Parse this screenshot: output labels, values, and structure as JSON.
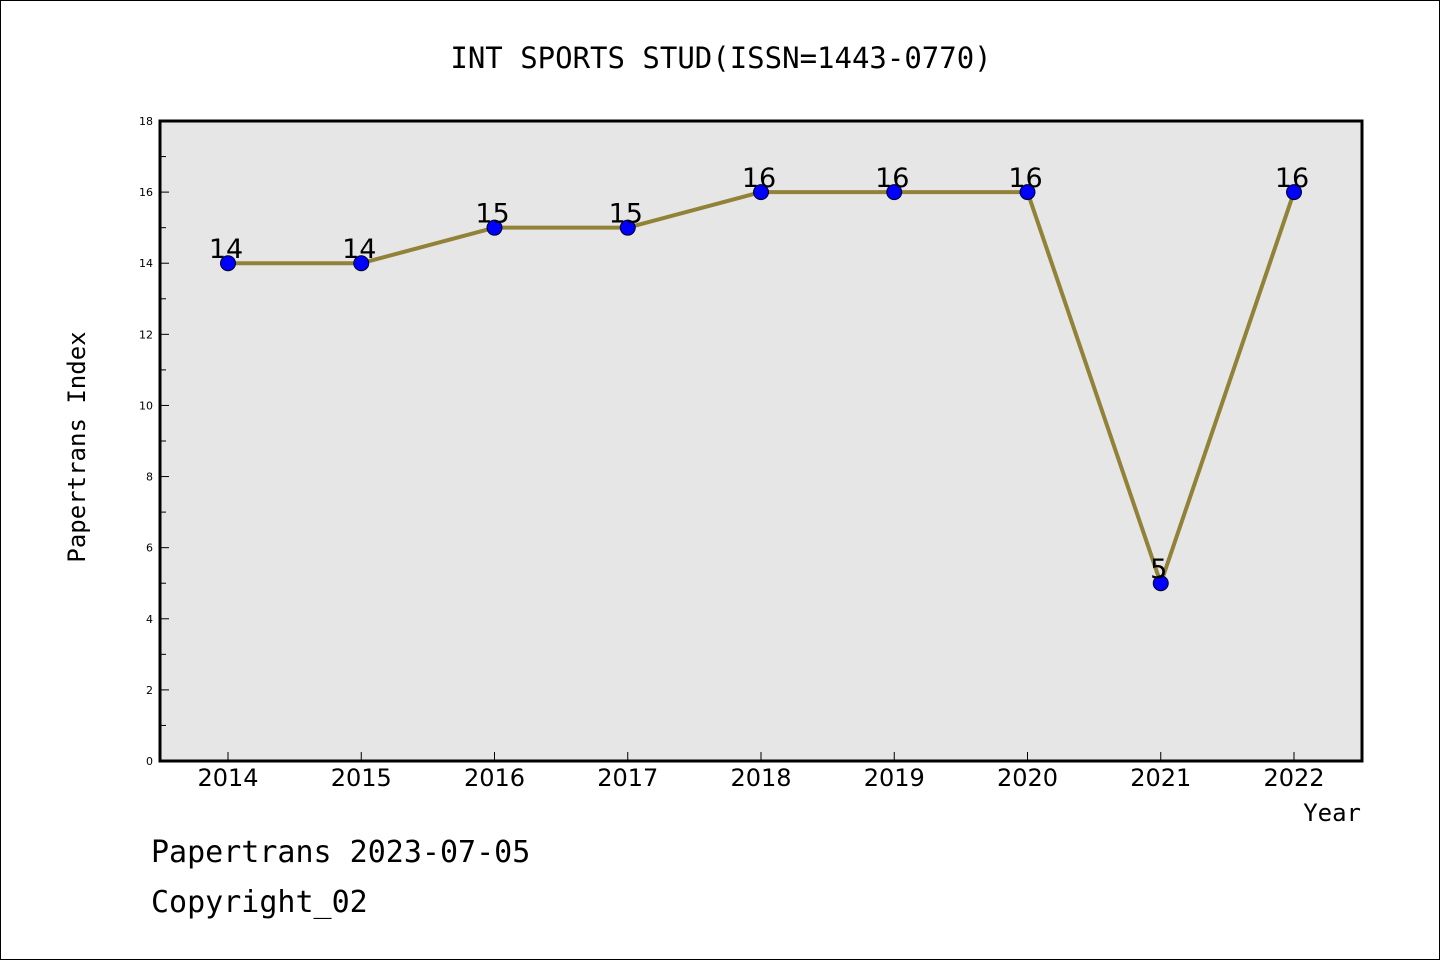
{
  "chart_data": {
    "type": "line",
    "title": "INT SPORTS STUD(ISSN=1443-0770)",
    "xlabel": "Year",
    "ylabel": "Papertrans Index",
    "categories": [
      "2014",
      "2015",
      "2016",
      "2017",
      "2018",
      "2019",
      "2020",
      "2021",
      "2022"
    ],
    "series": [
      {
        "values": [
          14,
          14,
          15,
          15,
          16,
          16,
          16,
          5,
          16
        ]
      }
    ],
    "ylim": [
      0,
      18
    ],
    "yticks": [
      "0",
      "2",
      "4",
      "6",
      "8",
      "10",
      "12",
      "14",
      "16",
      "18"
    ],
    "data_labels": [
      "14",
      "14",
      "15",
      "15",
      "16",
      "16",
      "16",
      "5",
      "16"
    ],
    "grid": false,
    "legend": "none"
  },
  "colors": {
    "plot_background": "#e6e6e6",
    "line": "#918237",
    "marker": "#0000ff"
  },
  "footer": {
    "line1": "Papertrans 2023-07-05",
    "line2": "Copyright_02"
  }
}
